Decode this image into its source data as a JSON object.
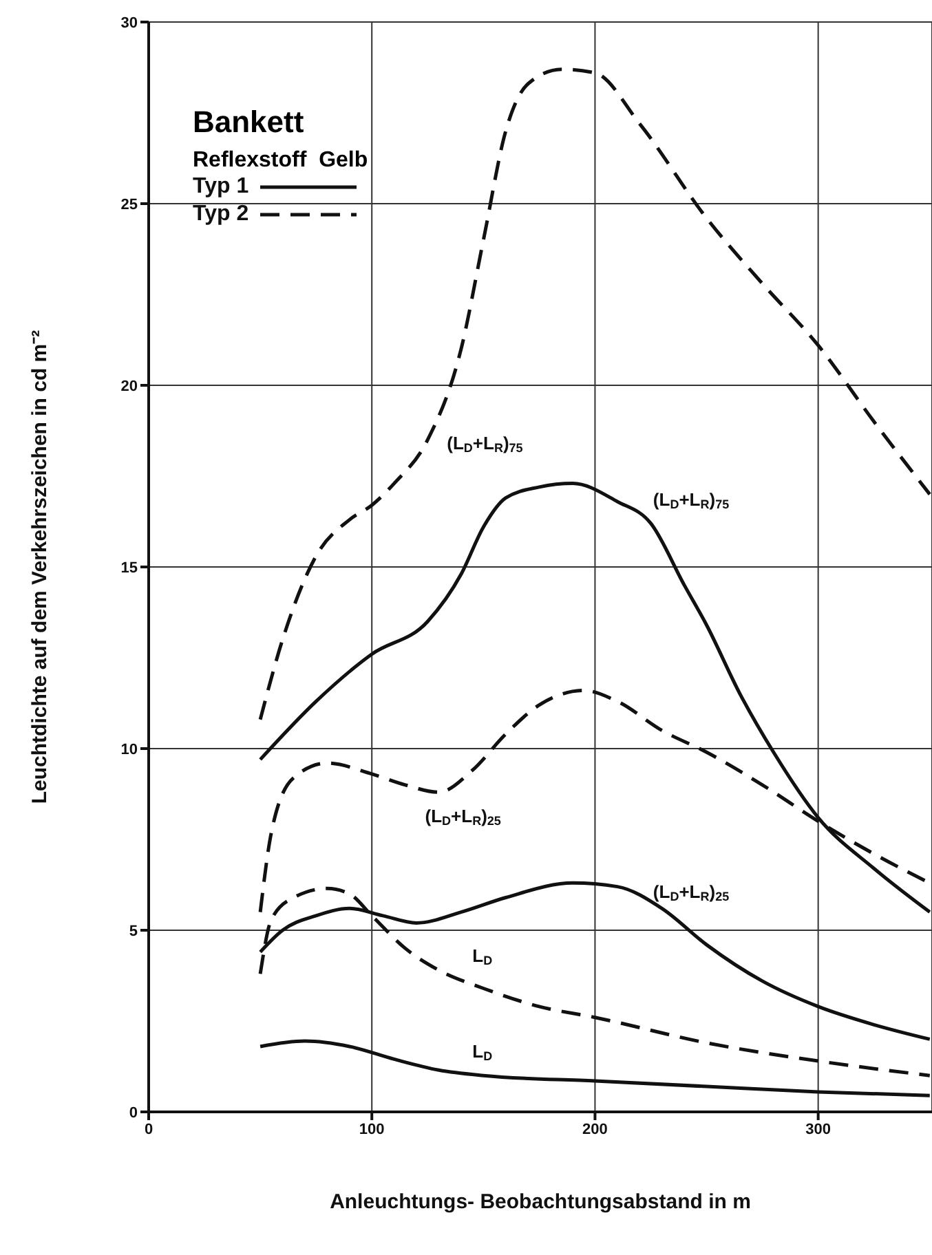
{
  "chart_data": {
    "type": "line",
    "title": "Bankett",
    "legend_title": "Reflexstoff  Gelb",
    "xlabel": "Anleuchtungs- Beobachtungsabstand in m",
    "ylabel": "Leuchtdichte auf dem Verkehrszeichen in cd m⁻²",
    "xlim": [
      0,
      351
    ],
    "xticks": [
      0,
      100,
      200,
      300
    ],
    "ylim": [
      0,
      30
    ],
    "yticks": [
      0,
      5,
      10,
      15,
      20,
      25,
      30
    ],
    "grid": true,
    "legend": "top left",
    "marker": "none",
    "series": [
      {
        "name": "Typ 1",
        "color": "#111111",
        "line_style": "solid",
        "x": [
          50,
          75,
          100,
          125,
          140,
          150,
          160,
          175,
          190,
          210,
          225,
          240,
          250,
          265,
          280,
          300,
          325,
          350
        ],
        "values": [
          9.7,
          11.3,
          12.6,
          13.5,
          14.8,
          16.1,
          16.9,
          17.2,
          17.3,
          16.8,
          16.2,
          14.5,
          13.4,
          11.5,
          9.9,
          8.1,
          6.7,
          5.5
        ]
      },
      {
        "name": "Typ 2",
        "color": "#111111",
        "line_style": "dashed",
        "x": [
          50,
          60,
          75,
          90,
          100,
          110,
          125,
          140,
          150,
          160,
          170,
          185,
          200,
          220,
          250,
          275,
          300,
          325,
          350
        ],
        "values": [
          10.8,
          13,
          15.3,
          16.3,
          16.7,
          17.3,
          18.5,
          21,
          24,
          27,
          28.3,
          28.7,
          28.6,
          27.2,
          24.6,
          22.8,
          21.1,
          19,
          17
        ]
      },
      {
        "color": "#111111",
        "line_style": "dashed",
        "x": [
          50,
          55,
          65,
          80,
          100,
          115,
          130,
          145,
          160,
          175,
          195,
          210,
          230,
          250,
          275,
          300,
          325,
          350
        ],
        "values": [
          5.5,
          7.7,
          9.2,
          9.6,
          9.3,
          9.0,
          8.8,
          9.4,
          10.4,
          11.2,
          11.6,
          11.3,
          10.5,
          9.9,
          9.0,
          8.0,
          7.1,
          6.3
        ]
      },
      {
        "color": "#111111",
        "line_style": "solid",
        "x": [
          50,
          60,
          75,
          90,
          105,
          120,
          140,
          160,
          190,
          210,
          230,
          250,
          275,
          300,
          325,
          350
        ],
        "values": [
          4.4,
          5.0,
          5.4,
          5.6,
          5.4,
          5.2,
          5.5,
          5.9,
          6.3,
          6.2,
          5.6,
          4.6,
          3.6,
          2.9,
          2.4,
          2.0
        ]
      },
      {
        "color": "#111111",
        "line_style": "dashed",
        "x": [
          50,
          55,
          65,
          80,
          90,
          100,
          115,
          130,
          150,
          175,
          200,
          250,
          300,
          350
        ],
        "values": [
          3.8,
          5.3,
          5.9,
          6.15,
          6.0,
          5.4,
          4.5,
          3.9,
          3.4,
          2.9,
          2.6,
          1.9,
          1.4,
          1.0
        ]
      },
      {
        "color": "#111111",
        "line_style": "solid",
        "x": [
          50,
          70,
          90,
          110,
          130,
          150,
          200,
          250,
          300,
          350
        ],
        "values": [
          1.8,
          1.95,
          1.8,
          1.45,
          1.15,
          1.0,
          0.85,
          0.7,
          0.55,
          0.45
        ]
      }
    ],
    "annotations": [
      {
        "text": "(L$_{D}$+L$_{R}$)$_{75}$",
        "x": 125,
        "y": 18.5
      },
      {
        "text": "(L$_{D}$+L$_{R}$)$_{75}$",
        "x": 210,
        "y": 16.8
      },
      {
        "text": "(L$_{D}$+L$_{R}$)$_{25}$",
        "x": 130,
        "y": 8.8
      },
      {
        "text": "(L$_{D}$+L$_{R}$)$_{25}$",
        "x": 210,
        "y": 6.2
      },
      {
        "text": "L$_{D}$",
        "x": 150,
        "y": 3.4
      },
      {
        "text": "L$_{D}$",
        "x": 150,
        "y": 1.0
      }
    ]
  }
}
